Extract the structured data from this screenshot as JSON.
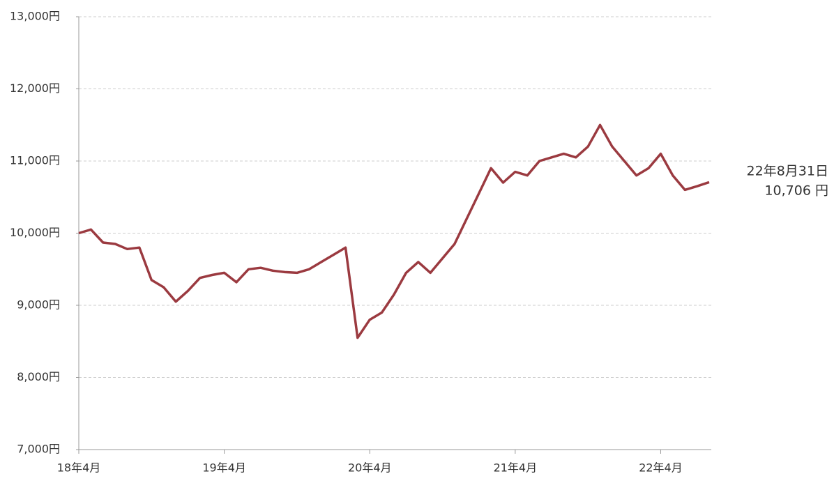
{
  "chart_data": {
    "type": "line",
    "x": [
      "2018-04",
      "2018-05",
      "2018-06",
      "2018-07",
      "2018-08",
      "2018-09",
      "2018-10",
      "2018-11",
      "2018-12",
      "2019-01",
      "2019-02",
      "2019-03",
      "2019-04",
      "2019-05",
      "2019-06",
      "2019-07",
      "2019-08",
      "2019-09",
      "2019-10",
      "2019-11",
      "2019-12",
      "2020-01",
      "2020-02",
      "2020-03",
      "2020-04",
      "2020-05",
      "2020-06",
      "2020-07",
      "2020-08",
      "2020-09",
      "2020-10",
      "2020-11",
      "2020-12",
      "2021-01",
      "2021-02",
      "2021-03",
      "2021-04",
      "2021-05",
      "2021-06",
      "2021-07",
      "2021-08",
      "2021-09",
      "2021-10",
      "2021-11",
      "2021-12",
      "2022-01",
      "2022-02",
      "2022-03",
      "2022-04",
      "2022-05",
      "2022-06",
      "2022-07",
      "2022-08"
    ],
    "values": [
      10000,
      10050,
      9870,
      9850,
      9780,
      9800,
      9350,
      9250,
      9050,
      9200,
      9380,
      9420,
      9450,
      9320,
      9500,
      9520,
      9480,
      9460,
      9450,
      9500,
      9600,
      9700,
      9800,
      8550,
      8800,
      8900,
      9150,
      9450,
      9600,
      9450,
      9650,
      9850,
      10200,
      10550,
      10900,
      10700,
      10850,
      10800,
      11000,
      11050,
      11100,
      11050,
      11200,
      11500,
      11200,
      11000,
      10800,
      10900,
      11100,
      10800,
      10600,
      10650,
      10706
    ],
    "color": "#9b3a40",
    "xlim": [
      "2018-04",
      "2022-08"
    ],
    "xticks": [
      {
        "value": "2018-04",
        "label": "18年4月"
      },
      {
        "value": "2019-04",
        "label": "19年4月"
      },
      {
        "value": "2020-04",
        "label": "20年4月"
      },
      {
        "value": "2021-04",
        "label": "21年4月"
      },
      {
        "value": "2022-04",
        "label": "22年4月"
      }
    ],
    "ylim": [
      7000,
      13000
    ],
    "yticks": [
      {
        "value": 7000,
        "label": "7,000円"
      },
      {
        "value": 8000,
        "label": "8,000円"
      },
      {
        "value": 9000,
        "label": "9,000円"
      },
      {
        "value": 10000,
        "label": "10,000円"
      },
      {
        "value": 11000,
        "label": "11,000円"
      },
      {
        "value": 12000,
        "label": "12,000円"
      },
      {
        "value": 13000,
        "label": "13,000円"
      }
    ],
    "grid": true,
    "annotations": [
      "22年8月31日",
      "10,706 円"
    ]
  }
}
